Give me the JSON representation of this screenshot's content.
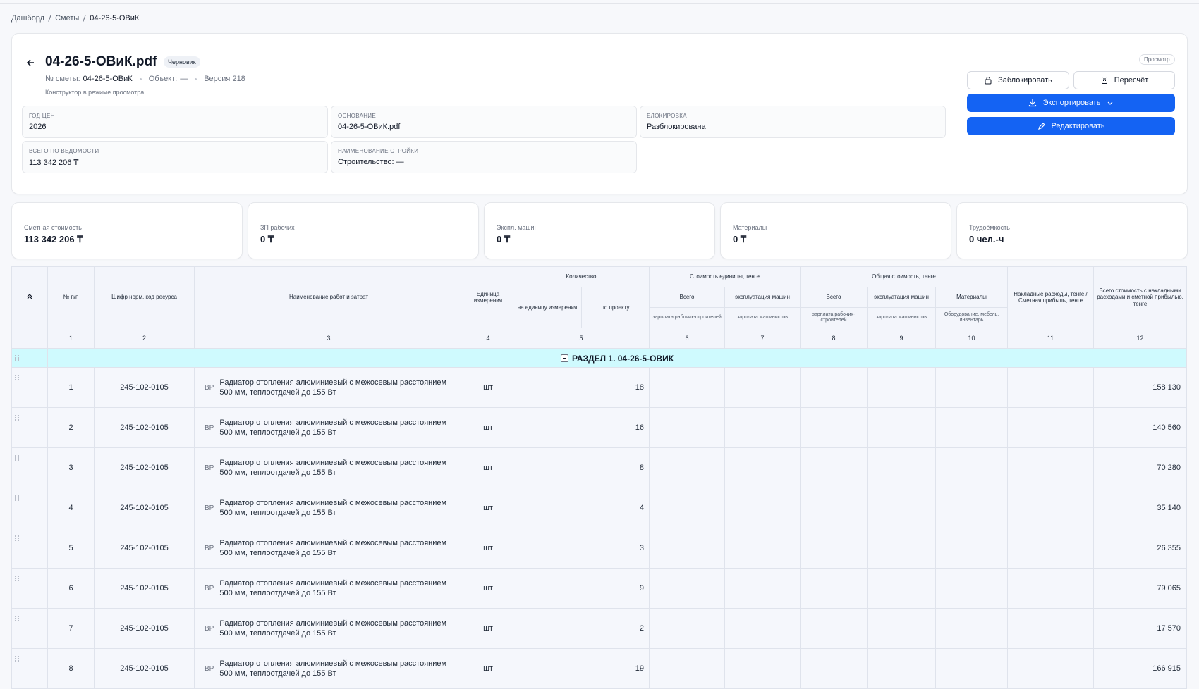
{
  "breadcrumbs": [
    "Дашборд",
    "Сметы",
    "04-26-5-ОВиК"
  ],
  "header": {
    "title": "04-26-5-ОВиК.pdf",
    "badge": "Черновик",
    "meta": {
      "number_label": "№ сметы:",
      "number": "04-26-5-ОВиК",
      "object_label": "Объект:",
      "object": "—",
      "version": "Версия 218"
    },
    "mode": "Конструктор в режиме просмотра"
  },
  "fields": [
    {
      "label": "ГОД ЦЕН",
      "value": "2026"
    },
    {
      "label": "ОСНОВАНИЕ",
      "value": "04-26-5-ОВиК.pdf"
    },
    {
      "label": "БЛОКИРОВКА",
      "value": "Разблокирована"
    },
    {
      "label": "ВСЕГО ПО ВЕДОМОСТИ",
      "value": "113 342 206 ₸"
    },
    {
      "label": "НАИМЕНОВАНИЕ СТРОЙКИ",
      "value": "Строительство: —"
    }
  ],
  "actions": {
    "view": "Просмотр",
    "lock": "Заблокировать",
    "recalc": "Пересчёт",
    "export": "Экспортировать",
    "edit": "Редактировать"
  },
  "summary": [
    {
      "label": "Сметная стоимость",
      "value": "113 342 206 ₸"
    },
    {
      "label": "ЗП рабочих",
      "value": "0 ₸"
    },
    {
      "label": "Экспл. машин",
      "value": "0 ₸"
    },
    {
      "label": "Материалы",
      "value": "0 ₸"
    },
    {
      "label": "Трудоёмкость",
      "value": "0 чел.-ч"
    }
  ],
  "table": {
    "columns": {
      "n": "№ п/п",
      "code": "Шифр норм, код ресурса",
      "name": "Наименование работ и затрат",
      "unit": "Единица измерения",
      "quantity": {
        "title": "Количество",
        "per_unit": "на единицу измерения",
        "per_project": "по проекту"
      },
      "unit_cost": {
        "title": "Стоимость единицы, тенге",
        "total": "Всего",
        "total_sub": "зарплата рабочих-строителей",
        "machines": "эксплуатация машин",
        "machines_sub": "зарплата машинистов"
      },
      "total_cost": {
        "title": "Общая стоимость, тенге",
        "total": "Всего",
        "total_sub": "зарплата рабочих-строителей",
        "machines": "эксплуатация машин",
        "machines_sub": "зарплата машинистов",
        "materials": "Материалы",
        "materials_sub": "Оборудование, мебель, инвентарь"
      },
      "overhead": "Накладные расходы, тенге / Сметная прибыль, тенге",
      "grand_total": "Всего стоимость с накладными расходами и сметной прибылью, тенге"
    },
    "column_numbers": [
      1,
      2,
      3,
      4,
      5,
      6,
      7,
      8,
      9,
      10,
      11,
      12
    ],
    "section": "РАЗДЕЛ 1. 04-26-5-ОВИК",
    "rows": [
      {
        "n": 1,
        "code": "245-102-0105",
        "type": "ВР",
        "name": "Радиатор отопления алюминиевый с межосевым расстоянием 500 мм, теплоотдачей до 155 Вт",
        "unit": "шт",
        "quantity": 18,
        "total": "158 130"
      },
      {
        "n": 2,
        "code": "245-102-0105",
        "type": "ВР",
        "name": "Радиатор отопления алюминиевый с межосевым расстоянием 500 мм, теплоотдачей до 155 Вт",
        "unit": "шт",
        "quantity": 16,
        "total": "140 560"
      },
      {
        "n": 3,
        "code": "245-102-0105",
        "type": "ВР",
        "name": "Радиатор отопления алюминиевый с межосевым расстоянием 500 мм, теплоотдачей до 155 Вт",
        "unit": "шт",
        "quantity": 8,
        "total": "70 280"
      },
      {
        "n": 4,
        "code": "245-102-0105",
        "type": "ВР",
        "name": "Радиатор отопления алюминиевый с межосевым расстоянием 500 мм, теплоотдачей до 155 Вт",
        "unit": "шт",
        "quantity": 4,
        "total": "35 140"
      },
      {
        "n": 5,
        "code": "245-102-0105",
        "type": "ВР",
        "name": "Радиатор отопления алюминиевый с межосевым расстоянием 500 мм, теплоотдачей до 155 Вт",
        "unit": "шт",
        "quantity": 3,
        "total": "26 355"
      },
      {
        "n": 6,
        "code": "245-102-0105",
        "type": "ВР",
        "name": "Радиатор отопления алюминиевый с межосевым расстоянием 500 мм, теплоотдачей до 155 Вт",
        "unit": "шт",
        "quantity": 9,
        "total": "79 065"
      },
      {
        "n": 7,
        "code": "245-102-0105",
        "type": "ВР",
        "name": "Радиатор отопления алюминиевый с межосевым расстоянием 500 мм, теплоотдачей до 155 Вт",
        "unit": "шт",
        "quantity": 2,
        "total": "17 570"
      },
      {
        "n": 8,
        "code": "245-102-0105",
        "type": "ВР",
        "name": "Радиатор отопления алюминиевый с межосевым расстоянием 500 мм, теплоотдачей до 155 Вт",
        "unit": "шт",
        "quantity": 19,
        "total": "166 915"
      }
    ]
  }
}
